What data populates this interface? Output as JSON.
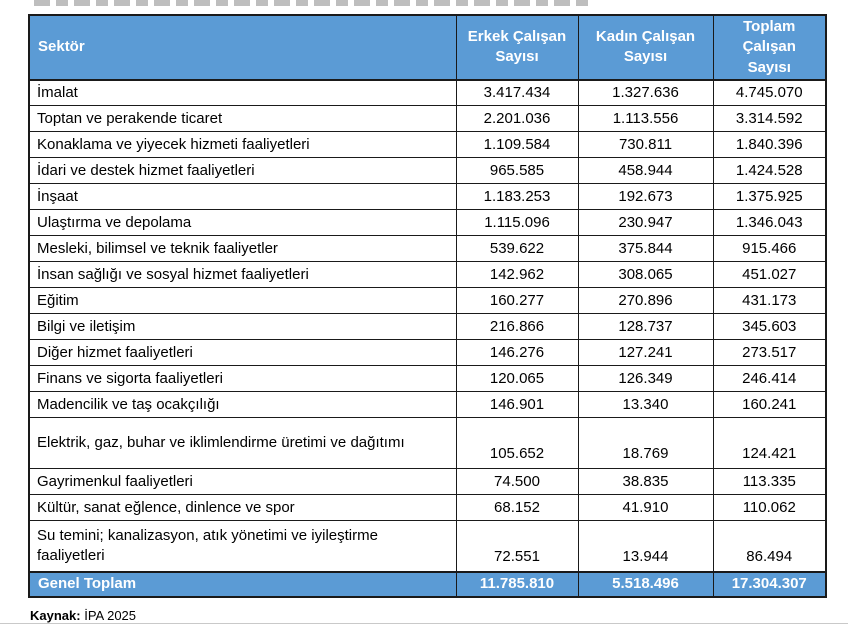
{
  "colors": {
    "header_bg": "#5B9BD5",
    "header_text": "#FFFFFF",
    "border": "#1a1a1a"
  },
  "table": {
    "columns": {
      "sector": "Sektör",
      "male": "Erkek Çalışan Sayısı",
      "female": "Kadın Çalışan Sayısı",
      "total": "Toplam Çalışan Sayısı"
    },
    "rows": [
      {
        "sector": "İmalat",
        "male": "3.417.434",
        "female": "1.327.636",
        "total": "4.745.070",
        "two_line": false
      },
      {
        "sector": "Toptan ve perakende ticaret",
        "male": "2.201.036",
        "female": "1.113.556",
        "total": "3.314.592",
        "two_line": false
      },
      {
        "sector": "Konaklama ve yiyecek hizmeti faaliyetleri",
        "male": "1.109.584",
        "female": "730.811",
        "total": "1.840.396",
        "two_line": false
      },
      {
        "sector": "İdari ve destek hizmet faaliyetleri",
        "male": "965.585",
        "female": "458.944",
        "total": "1.424.528",
        "two_line": false
      },
      {
        "sector": "İnşaat",
        "male": "1.183.253",
        "female": "192.673",
        "total": "1.375.925",
        "two_line": false
      },
      {
        "sector": "Ulaştırma ve depolama",
        "male": "1.115.096",
        "female": "230.947",
        "total": "1.346.043",
        "two_line": false
      },
      {
        "sector": "Mesleki, bilimsel ve teknik faaliyetler",
        "male": "539.622",
        "female": "375.844",
        "total": "915.466",
        "two_line": false
      },
      {
        "sector": "İnsan sağlığı ve sosyal hizmet faaliyetleri",
        "male": "142.962",
        "female": "308.065",
        "total": "451.027",
        "two_line": false
      },
      {
        "sector": "Eğitim",
        "male": "160.277",
        "female": "270.896",
        "total": "431.173",
        "two_line": false
      },
      {
        "sector": "Bilgi ve iletişim",
        "male": "216.866",
        "female": "128.737",
        "total": "345.603",
        "two_line": false
      },
      {
        "sector": "Diğer hizmet faaliyetleri",
        "male": "146.276",
        "female": "127.241",
        "total": "273.517",
        "two_line": false
      },
      {
        "sector": "Finans ve sigorta faaliyetleri",
        "male": "120.065",
        "female": "126.349",
        "total": "246.414",
        "two_line": false
      },
      {
        "sector": "Madencilik ve taş ocakçılığı",
        "male": "146.901",
        "female": "13.340",
        "total": "160.241",
        "two_line": false
      },
      {
        "sector": "Elektrik, gaz, buhar ve iklimlendirme üretimi ve dağıtımı",
        "male": "105.652",
        "female": "18.769",
        "total": "124.421",
        "two_line": true
      },
      {
        "sector": "Gayrimenkul faaliyetleri",
        "male": "74.500",
        "female": "38.835",
        "total": "113.335",
        "two_line": false
      },
      {
        "sector": "Kültür, sanat eğlence, dinlence ve spor",
        "male": "68.152",
        "female": "41.910",
        "total": "110.062",
        "two_line": false
      },
      {
        "sector": "Su temini; kanalizasyon, atık yönetimi ve iyileştirme faaliyetleri",
        "male": "72.551",
        "female": "13.944",
        "total": "86.494",
        "two_line": true
      }
    ],
    "footer": {
      "label": "Genel Toplam",
      "male": "11.785.810",
      "female": "5.518.496",
      "total": "17.304.307"
    }
  },
  "source": {
    "label": "Kaynak:",
    "value": "İPA 2025"
  }
}
